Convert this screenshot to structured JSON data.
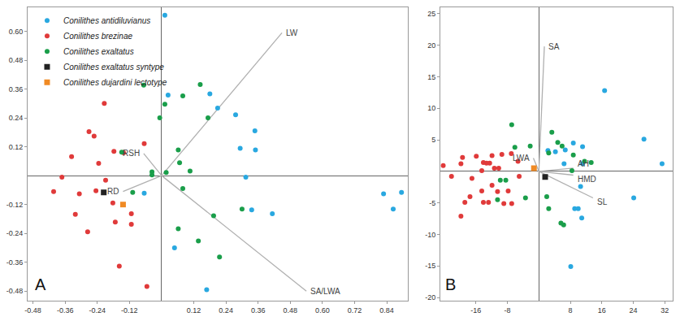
{
  "chart_data": [
    {
      "type": "scatter",
      "panel": "A",
      "legend": "upper left",
      "xlim": [
        -0.5,
        0.92
      ],
      "ylim": [
        -0.52,
        0.7
      ],
      "xticks": [
        -0.48,
        -0.36,
        -0.24,
        -0.12,
        0.12,
        0.24,
        0.36,
        0.48,
        {
          "value": 0.6,
          "label": "0.60"
        },
        0.72,
        0.84
      ],
      "yticks": [
        -0.48,
        -0.36,
        -0.24,
        -0.12,
        0.12,
        0.24,
        0.36,
        0.48,
        {
          "value": 0.6,
          "label": "0.60"
        }
      ],
      "series": [
        {
          "name": "Conilithes antidiluvianus",
          "color": "#29a8e0",
          "marker": "circle",
          "x": [
            0.012,
            0.024,
            0.18,
            0.209,
            0.276,
            0.348,
            0.293,
            0.35,
            0.314,
            -0.065,
            0.048,
            0.168,
            0.336,
            0.413,
            0.828,
            0.864,
            0.895
          ],
          "y": [
            0.667,
            0.335,
            0.34,
            0.281,
            0.253,
            0.186,
            0.114,
            0.107,
            -0.006,
            -0.073,
            -0.3,
            -0.474,
            -0.142,
            -0.158,
            -0.076,
            -0.139,
            -0.07
          ]
        },
        {
          "name": "Conilithes brezinae",
          "color": "#e03a3a",
          "marker": "circle",
          "x": [
            -0.214,
            -0.271,
            -0.252,
            -0.336,
            -0.235,
            -0.178,
            -0.142,
            -0.065,
            -0.403,
            -0.307,
            -0.245,
            -0.322,
            -0.182,
            -0.113,
            -0.276,
            -0.173,
            -0.113,
            -0.158,
            -0.055,
            -0.372,
            -0.209
          ],
          "y": [
            0.3,
            0.183,
            0.164,
            0.079,
            0.051,
            0.101,
            0.095,
            0.133,
            -0.066,
            -0.076,
            -0.063,
            -0.161,
            -0.114,
            -0.158,
            -0.234,
            -0.193,
            -0.202,
            -0.376,
            -0.461,
            -0.006,
            -0.019
          ]
        },
        {
          "name": "Conilithes exaltatus",
          "color": "#1a9e4a",
          "marker": "circle",
          "x": [
            -0.067,
            0.012,
            0.079,
            0.144,
            0.173,
            -0.007,
            0.062,
            0.067,
            -0.036,
            -0.036,
            -0.149,
            -0.108,
            0.079,
            0.062,
            0.137,
            0.216,
            0.194,
            0.106,
            0.3,
            0.017
          ],
          "y": [
            0.376,
            0.297,
            0.332,
            0.379,
            0.24,
            0.24,
            0.107,
            0.054,
            0.016,
            0.003,
            0.098,
            -0.07,
            -0.054,
            -0.221,
            -0.272,
            -0.338,
            -0.167,
            0.019,
            -0.139,
            0.013
          ]
        },
        {
          "name": "Conilithes exaltatus syntype",
          "color": "#222222",
          "marker": "square",
          "x": [
            -0.216
          ],
          "y": [
            -0.07
          ]
        },
        {
          "name": "Conilithes dujardini lectotype",
          "color": "#f08a24",
          "marker": "square",
          "x": [
            -0.144
          ],
          "y": [
            -0.12
          ]
        }
      ],
      "loadings": [
        {
          "label": "LW",
          "x": 0.449,
          "y": 0.594
        },
        {
          "label": "RSH",
          "x": -0.067,
          "y": 0.092
        },
        {
          "label": "RD",
          "x": -0.144,
          "y": -0.066
        },
        {
          "label": "SA/LWA",
          "x": 0.54,
          "y": -0.48
        }
      ]
    },
    {
      "type": "scatter",
      "panel": "B",
      "xlim": [
        -25,
        34
      ],
      "ylim": [
        -20.5,
        26
      ],
      "xticks": [
        -16,
        -8,
        8,
        16,
        24,
        32
      ],
      "yticks": [
        -20,
        -15,
        -10,
        -5,
        5,
        10,
        15,
        20,
        25
      ],
      "series": [
        {
          "name": "Conilithes antidiluvianus",
          "color": "#29a8e0",
          "marker": "circle",
          "x": [
            16.7,
            26.7,
            31.3,
            6.7,
            8.75,
            11.1,
            6.4,
            11.1,
            10.6,
            9.1,
            10.0,
            10.9,
            24.1,
            8.1,
            2.3,
            4.2
          ],
          "y": [
            12.8,
            5.1,
            1.2,
            3.4,
            4.5,
            3.9,
            1.2,
            1.2,
            -2.4,
            -5.9,
            -5.9,
            -7.4,
            -4.2,
            -15.1,
            3.3,
            3.1
          ]
        },
        {
          "name": "Conilithes brezinae",
          "color": "#e03a3a",
          "marker": "circle",
          "x": [
            -24.3,
            -22.2,
            -19.8,
            -19.4,
            -19.8,
            -17.0,
            -15.9,
            -14.1,
            -13.3,
            -12.5,
            -11.9,
            -9.4,
            -7.0,
            -5.3,
            -5.0,
            -11.3,
            -10.2,
            -14.5,
            -14.5,
            -14.1,
            -12.8,
            -10.5,
            -8.9,
            -6.9,
            -11.9,
            -7.8,
            -18.8,
            -17.5
          ],
          "y": [
            0.9,
            -0.8,
            1.2,
            2.2,
            -7.1,
            -1.1,
            2.4,
            1.4,
            1.3,
            1.3,
            2.5,
            2.7,
            2.8,
            1.6,
            -0.8,
            0.5,
            0.5,
            0.1,
            -3.1,
            -4.9,
            -4.9,
            -3.2,
            -5.1,
            -5.1,
            -2.2,
            -3.1,
            -4.9,
            -4.0
          ]
        },
        {
          "name": "Conilithes exaltatus",
          "color": "#1a9e4a",
          "marker": "circle",
          "x": [
            -6.9,
            -6.1,
            -2.2,
            3.3,
            4.8,
            5.9,
            2.5,
            8.75,
            11.6,
            13.3,
            8.4,
            -9.8,
            -8.4,
            -10.5,
            -3.4,
            2.0,
            2.5,
            5.6,
            6.3
          ],
          "y": [
            7.4,
            3.8,
            4.0,
            6.2,
            4.6,
            4.0,
            2.9,
            2.6,
            1.6,
            1.4,
            0.1,
            -1.4,
            -1.4,
            -4.5,
            -4.2,
            -4.0,
            -5.9,
            -8.2,
            -8.5
          ]
        },
        {
          "name": "Conilithes exaltatus syntype",
          "color": "#222222",
          "marker": "square",
          "x": [
            1.6
          ],
          "y": [
            -0.9
          ]
        },
        {
          "name": "Conilithes dujardini lectotype",
          "color": "#f08a24",
          "marker": "square",
          "x": [
            -1.25
          ],
          "y": [
            0.5
          ]
        }
      ],
      "loadings": [
        {
          "label": "SA",
          "x": 1.4,
          "y": 19.8
        },
        {
          "label": "LWA",
          "x": -1.4,
          "y": 2.1
        },
        {
          "label": "AH",
          "x": 8.75,
          "y": 0.5
        },
        {
          "label": "HMD",
          "x": 8.75,
          "y": -0.6
        },
        {
          "label": "SL",
          "x": 13.75,
          "y": -4.2
        }
      ]
    }
  ]
}
